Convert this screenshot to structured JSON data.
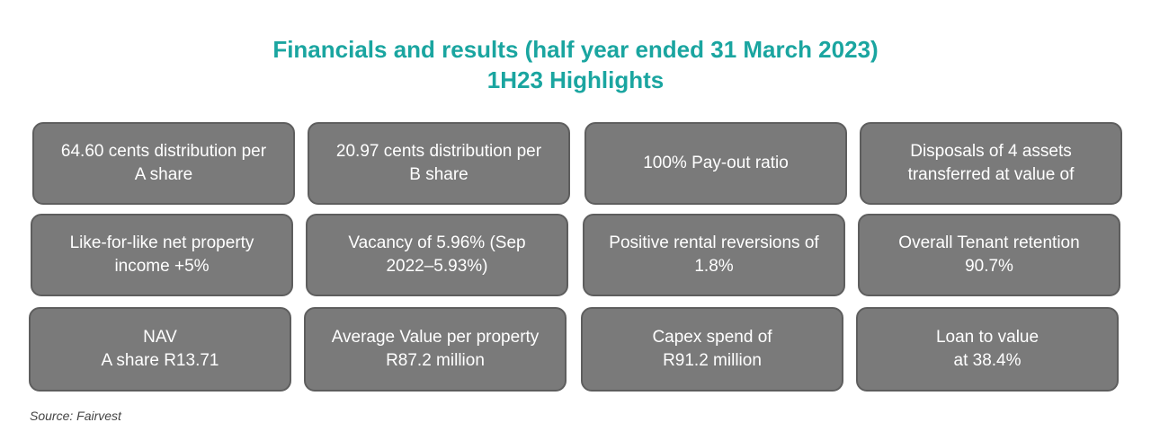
{
  "title": {
    "line1": "Financials and results (half year ended 31 March 2023)",
    "line2": "1H23 Highlights"
  },
  "cards": [
    {
      "line1": "64.60 cents distribution per",
      "line2": "A share"
    },
    {
      "line1": "20.97 cents distribution per",
      "line2": "B share"
    },
    {
      "line1": "100% Pay-out ratio",
      "line2": ""
    },
    {
      "line1": "Disposals of 4 assets",
      "line2": "transferred at value of"
    },
    {
      "line1": "Like-for-like net property",
      "line2": "income +5%"
    },
    {
      "line1": "Vacancy of 5.96% (Sep",
      "line2": "2022–5.93%)"
    },
    {
      "line1": "Positive rental  reversions of",
      "line2": "1.8%"
    },
    {
      "line1": "Overall Tenant retention",
      "line2": "90.7%"
    },
    {
      "line1": "NAV",
      "line2": "A share R13.71"
    },
    {
      "line1": "Average Value per property",
      "line2": "R87.2 million"
    },
    {
      "line1": "Capex spend of",
      "line2": "R91.2 million"
    },
    {
      "line1": "Loan to value",
      "line2": "at 38.4%"
    }
  ],
  "source": "Source: Fairvest",
  "colors": {
    "title": "#1aa5a0",
    "card_fill": "#7a7a7a",
    "card_border": "#5e5e5e",
    "card_text": "#ffffff"
  }
}
